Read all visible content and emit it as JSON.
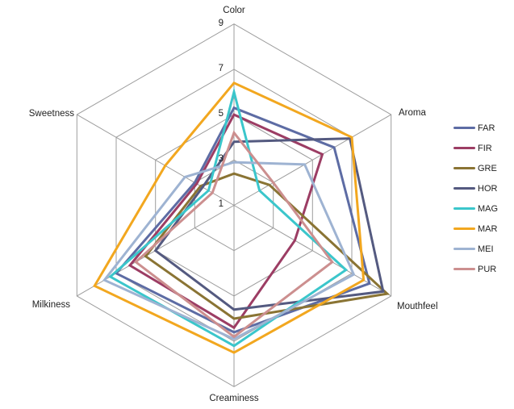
{
  "chart_data": {
    "type": "radar",
    "categories": [
      "Color",
      "Aroma",
      "Mouthfeel",
      "Creaminess",
      "Milkiness",
      "Sweetness"
    ],
    "axis": {
      "min": 1,
      "max": 9,
      "tick_interval": 2,
      "tick_labels": [
        "9",
        "7",
        "5",
        "3",
        "1"
      ],
      "tick_values": [
        9,
        7,
        5,
        3,
        1
      ]
    },
    "series": [
      {
        "name": "FAR",
        "color": "#5D6CA4",
        "values": [
          5.3,
          6.1,
          7.9,
          6.6,
          7.0,
          3.0
        ]
      },
      {
        "name": "FIR",
        "color": "#9C3D64",
        "values": [
          5.0,
          5.5,
          4.1,
          6.4,
          6.3,
          2.9
        ]
      },
      {
        "name": "GRE",
        "color": "#8A7434",
        "values": [
          2.4,
          2.8,
          8.8,
          6.0,
          5.5,
          2.7
        ]
      },
      {
        "name": "HOR",
        "color": "#545A80",
        "values": [
          3.8,
          6.9,
          8.6,
          5.6,
          5.0,
          2.6
        ]
      },
      {
        "name": "MAG",
        "color": "#3BC6CB",
        "values": [
          6.0,
          2.3,
          6.7,
          7.2,
          7.3,
          2.3
        ]
      },
      {
        "name": "MAR",
        "color": "#F2A71F",
        "values": [
          6.4,
          7.0,
          7.6,
          7.5,
          8.1,
          4.5
        ]
      },
      {
        "name": "MEI",
        "color": "#9EB3D2",
        "values": [
          2.9,
          4.6,
          7.1,
          6.9,
          7.6,
          3.5
        ]
      },
      {
        "name": "PUR",
        "color": "#CC8F8F",
        "values": [
          4.2,
          3.0,
          6.0,
          6.8,
          6.0,
          2.1
        ]
      }
    ],
    "grid": true,
    "gridline_color": "#9C9C9C",
    "background": "#FFFFFF",
    "legend_position": "right",
    "line_width": 3
  }
}
